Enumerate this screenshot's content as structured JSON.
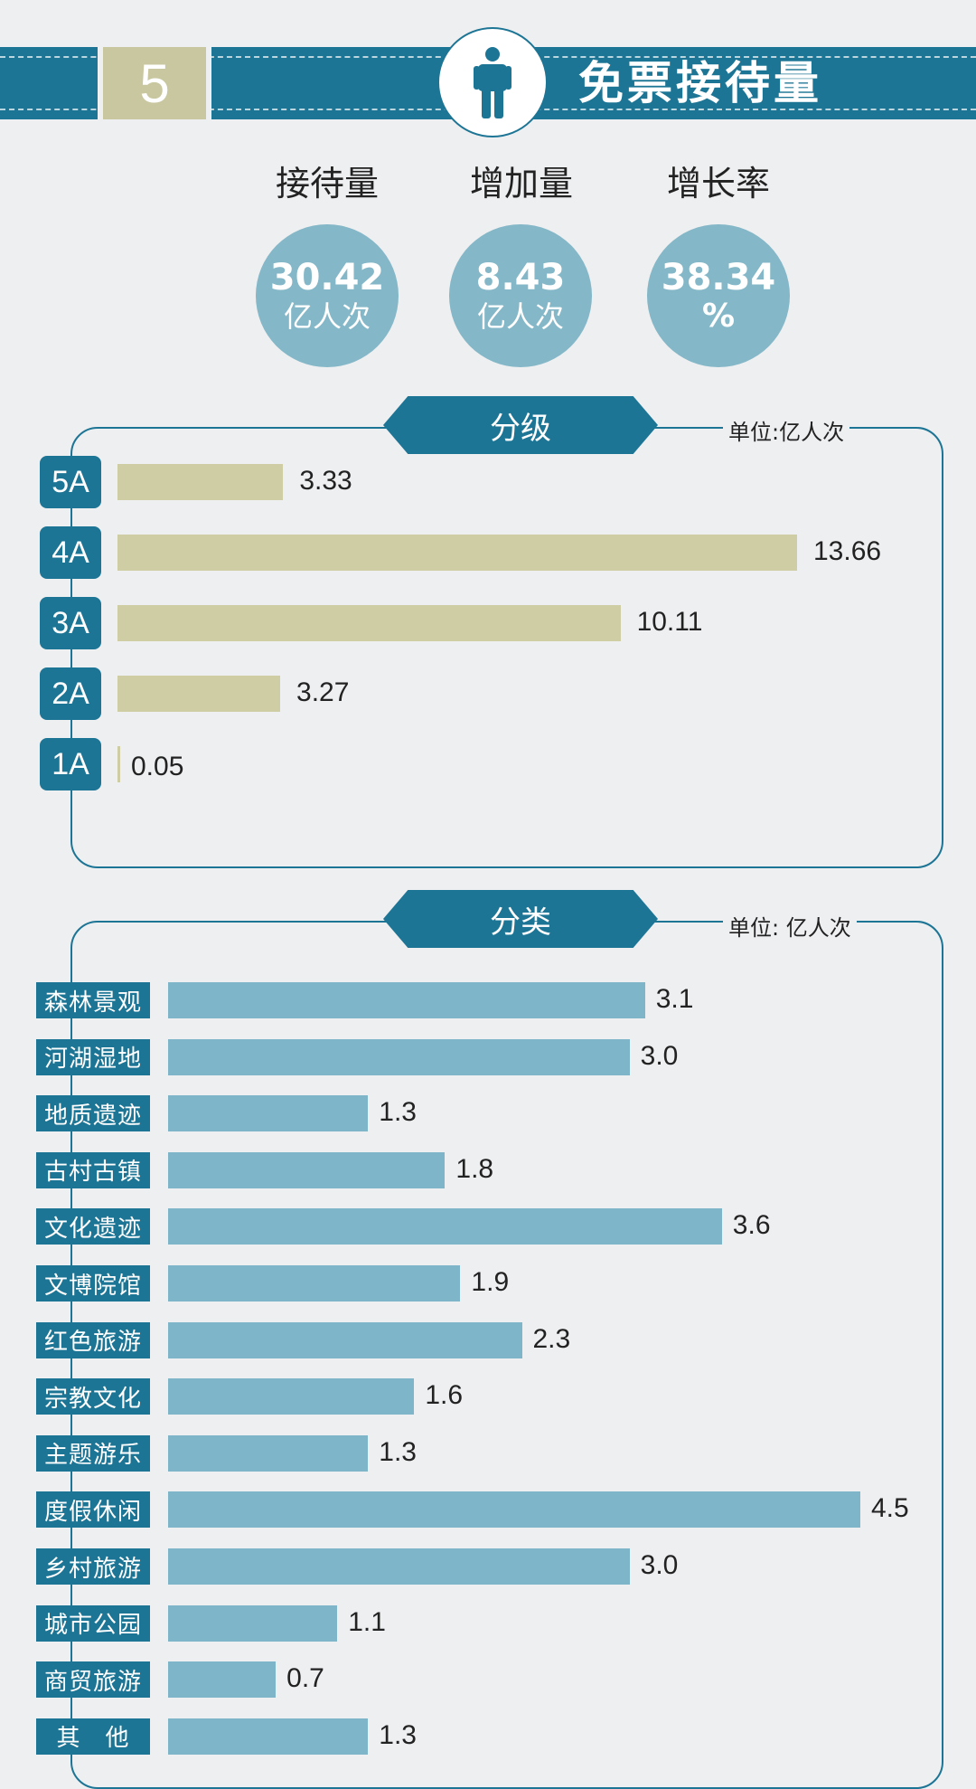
{
  "header": {
    "number": "5",
    "title": "免票接待量",
    "icon": "person-icon"
  },
  "stats": [
    {
      "label": "接待量",
      "value": "30.42",
      "unit": "亿人次"
    },
    {
      "label": "增加量",
      "value": "8.43",
      "unit": "亿人次"
    },
    {
      "label": "增长率",
      "value": "38.34",
      "unit": "%"
    }
  ],
  "colors": {
    "accent": "#1d7595",
    "gold": "#c9c7a0",
    "light_blue": "#7fb5c8",
    "circle": "#84b7c7"
  },
  "chart_data": [
    {
      "type": "bar",
      "orientation": "horizontal",
      "title": "分级",
      "unit": "单位:亿人次",
      "categories": [
        "5A",
        "4A",
        "3A",
        "2A",
        "1A"
      ],
      "values": [
        3.33,
        13.66,
        10.11,
        3.27,
        0.05
      ],
      "value_labels": [
        "3.33",
        "13.66",
        "10.11",
        "3.27",
        "0.05"
      ],
      "xlim": [
        0,
        13.66
      ],
      "grid": false
    },
    {
      "type": "bar",
      "orientation": "horizontal",
      "title": "分类",
      "unit": "单位: 亿人次",
      "categories": [
        "森林景观",
        "河湖湿地",
        "地质遗迹",
        "古村古镇",
        "文化遗迹",
        "文博院馆",
        "红色旅游",
        "宗教文化",
        "主题游乐",
        "度假休闲",
        "乡村旅游",
        "城市公园",
        "商贸旅游",
        "其　他"
      ],
      "values": [
        3.1,
        3.0,
        1.3,
        1.8,
        3.6,
        1.9,
        2.3,
        1.6,
        1.3,
        4.5,
        3.0,
        1.1,
        0.7,
        1.3
      ],
      "value_labels": [
        "3.1",
        "3.0",
        "1.3",
        "1.8",
        "3.6",
        "1.9",
        "2.3",
        "1.6",
        "1.3",
        "4.5",
        "3.0",
        "1.1",
        "0.7",
        "1.3"
      ],
      "xlim": [
        0,
        4.5
      ],
      "grid": false
    }
  ]
}
